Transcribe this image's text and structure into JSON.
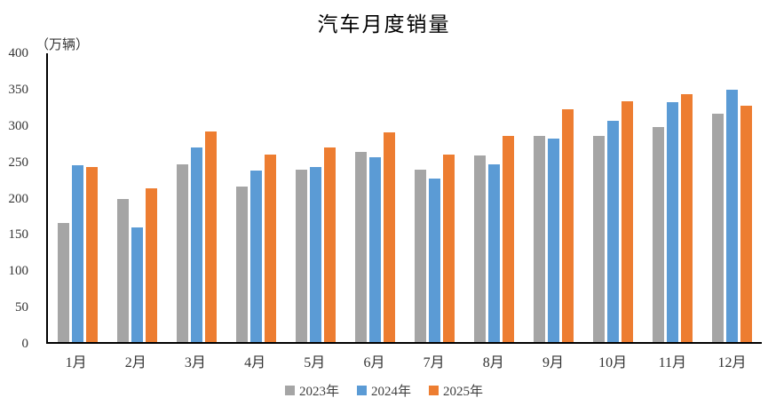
{
  "chart_data": {
    "type": "bar",
    "title": "汽车月度销量",
    "ylabel": "（万辆）",
    "categories": [
      "1月",
      "2月",
      "3月",
      "4月",
      "5月",
      "6月",
      "7月",
      "8月",
      "9月",
      "10月",
      "11月",
      "12月"
    ],
    "series": [
      {
        "name": "2023年",
        "color": "#A5A5A5",
        "values": [
          165,
          198,
          246,
          216,
          239,
          263,
          239,
          259,
          286,
          286,
          298,
          316
        ]
      },
      {
        "name": "2024年",
        "color": "#5B9BD5",
        "values": [
          245,
          159,
          270,
          237,
          243,
          256,
          227,
          246,
          282,
          306,
          332,
          350
        ]
      },
      {
        "name": "2025年",
        "color": "#ED7D31",
        "values": [
          243,
          213,
          292,
          260,
          269,
          291,
          260,
          286,
          323,
          334,
          344,
          328
        ]
      }
    ],
    "ylim": [
      0,
      400
    ],
    "yticks": [
      "400",
      "350",
      "300",
      "250",
      "200",
      "150",
      "100",
      "50",
      "0"
    ],
    "grid": false,
    "legend_position": "bottom",
    "axis_color": "#000000"
  }
}
